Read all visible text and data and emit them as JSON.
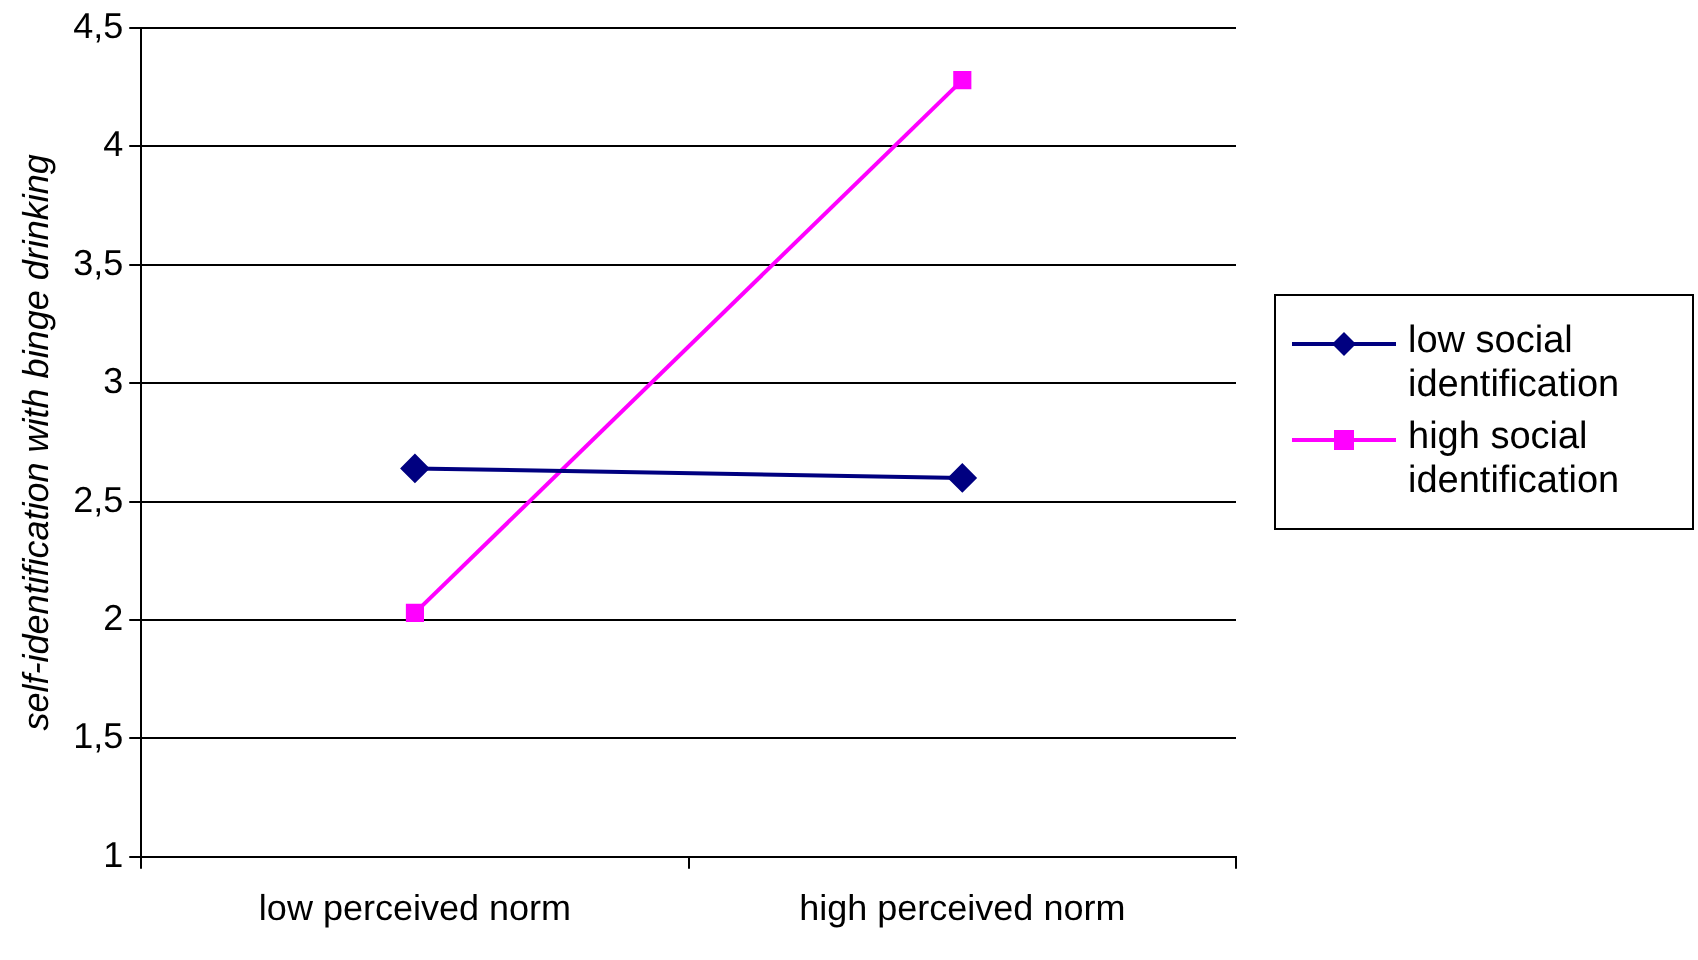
{
  "chart_data": {
    "type": "line",
    "ylabel": "self-identification with binge drinking",
    "categories": [
      "low perceived norm",
      "high perceived norm"
    ],
    "series": [
      {
        "name": "low social identification",
        "color": "#000080",
        "marker": "diamond",
        "values": [
          2.64,
          2.6
        ]
      },
      {
        "name": "high social identification",
        "color": "#ff00ff",
        "marker": "square",
        "values": [
          2.03,
          4.28
        ]
      }
    ],
    "ylim": [
      1,
      4.5
    ],
    "yticks": [
      {
        "value": 1,
        "label": "1"
      },
      {
        "value": 1.5,
        "label": "1,5"
      },
      {
        "value": 2,
        "label": "2"
      },
      {
        "value": 2.5,
        "label": "2,5"
      },
      {
        "value": 3,
        "label": "3"
      },
      {
        "value": 3.5,
        "label": "3,5"
      },
      {
        "value": 4,
        "label": "4"
      },
      {
        "value": 4.5,
        "label": "4,5"
      }
    ],
    "grid": "y",
    "legend": "right",
    "line_style": "solid"
  }
}
